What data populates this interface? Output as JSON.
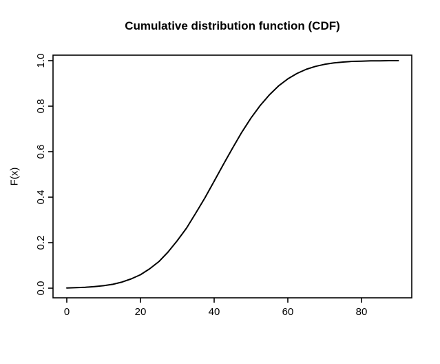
{
  "figure": {
    "background": "#ffffff",
    "foreground": "#000000"
  },
  "chart_data": {
    "type": "line",
    "title": "Cumulative distribution function (CDF)",
    "xlabel": "",
    "ylabel": "F(x)",
    "xlim": [
      0,
      90
    ],
    "ylim": [
      0,
      1
    ],
    "grid": false,
    "legend": "none",
    "x_tick_labels": [
      "0",
      "20",
      "40",
      "60",
      "80"
    ],
    "y_tick_labels": [
      "0.0",
      "0.2",
      "0.4",
      "0.6",
      "0.8",
      "1.0"
    ],
    "series": [
      {
        "name": "CDF",
        "color": "#000000",
        "x": [
          0,
          2.5,
          5,
          7.5,
          10,
          12.5,
          15,
          17.5,
          20,
          22.5,
          25,
          27.5,
          30,
          32.5,
          35,
          37.5,
          40,
          42.5,
          45,
          47.5,
          50,
          52.5,
          55,
          57.5,
          60,
          62.5,
          65,
          67.5,
          70,
          72.5,
          75,
          77.5,
          80,
          82.5,
          85,
          87.5,
          90
        ],
        "y": [
          0.001,
          0.002,
          0.004,
          0.007,
          0.011,
          0.017,
          0.027,
          0.041,
          0.059,
          0.085,
          0.117,
          0.159,
          0.209,
          0.264,
          0.33,
          0.397,
          0.47,
          0.544,
          0.616,
          0.685,
          0.748,
          0.803,
          0.85,
          0.889,
          0.92,
          0.944,
          0.962,
          0.975,
          0.984,
          0.99,
          0.994,
          0.997,
          0.998,
          0.999,
          0.999,
          1.0,
          1.0
        ]
      }
    ]
  }
}
